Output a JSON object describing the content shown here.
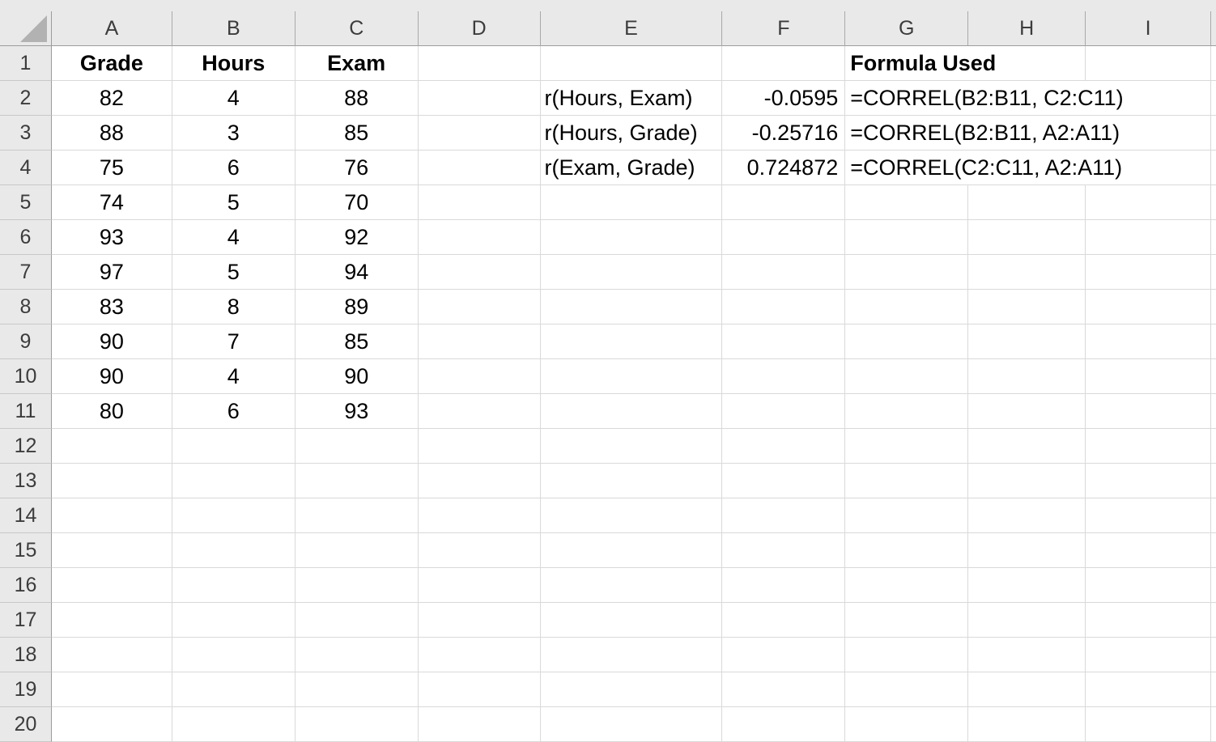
{
  "app": {
    "name": "spreadsheet-grid"
  },
  "colors": {
    "header_bg": "#e9e9e9",
    "gridline": "#d9d9d9",
    "header_divider": "#9c9c9c",
    "cell_text": "#000000",
    "header_text": "#3c3c3c",
    "select_all_triangle": "#b2b2b2"
  },
  "column_headers": [
    "A",
    "B",
    "C",
    "D",
    "E",
    "F",
    "G",
    "H",
    "I"
  ],
  "row_numbers": [
    "1",
    "2",
    "3",
    "4",
    "5",
    "6",
    "7",
    "8",
    "9",
    "10",
    "11",
    "12",
    "13",
    "14",
    "15",
    "16",
    "17",
    "18",
    "19",
    "20"
  ],
  "cells": {
    "A1": "Grade",
    "B1": "Hours",
    "C1": "Exam",
    "G1": "Formula Used"
  },
  "data": {
    "grade": [
      82,
      88,
      75,
      74,
      93,
      97,
      83,
      90,
      90,
      80
    ],
    "hours": [
      4,
      3,
      6,
      5,
      4,
      5,
      8,
      7,
      4,
      6
    ],
    "exam": [
      88,
      85,
      76,
      70,
      92,
      94,
      89,
      85,
      90,
      93
    ]
  },
  "correlations": [
    {
      "label": "r(Hours, Exam)",
      "value": "-0.0595",
      "formula": "=CORREL(B2:B11, C2:C11)"
    },
    {
      "label": "r(Hours, Grade)",
      "value": "-0.25716",
      "formula": "=CORREL(B2:B11, A2:A11)"
    },
    {
      "label": "r(Exam, Grade)",
      "value": "0.724872",
      "formula": "=CORREL(C2:C11, A2:A11)"
    }
  ]
}
